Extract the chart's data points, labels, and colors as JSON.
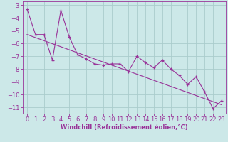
{
  "x_data": [
    0,
    1,
    2,
    3,
    4,
    5,
    6,
    7,
    8,
    9,
    10,
    11,
    12,
    13,
    14,
    15,
    16,
    17,
    18,
    19,
    20,
    21,
    22,
    23
  ],
  "y_data": [
    -3.3,
    -5.3,
    -5.3,
    -7.3,
    -3.4,
    -5.5,
    -6.9,
    -7.2,
    -7.6,
    -7.7,
    -7.6,
    -7.6,
    -8.2,
    -7.0,
    -7.5,
    -7.9,
    -7.3,
    -8.0,
    -8.5,
    -9.2,
    -8.6,
    -9.8,
    -11.1,
    -10.5
  ],
  "trend_x": [
    0,
    23
  ],
  "trend_y": [
    -5.3,
    -10.8
  ],
  "line_color": "#993399",
  "marker": "+",
  "xlabel": "Windchill (Refroidissement éolien,°C)",
  "ylim": [
    -11.5,
    -2.7
  ],
  "xlim": [
    -0.5,
    23.5
  ],
  "yticks": [
    -3,
    -4,
    -5,
    -6,
    -7,
    -8,
    -9,
    -10,
    -11
  ],
  "xticks": [
    0,
    1,
    2,
    3,
    4,
    5,
    6,
    7,
    8,
    9,
    10,
    11,
    12,
    13,
    14,
    15,
    16,
    17,
    18,
    19,
    20,
    21,
    22,
    23
  ],
  "bg_color": "#cce8e8",
  "grid_color": "#aacccc",
  "text_color": "#993399",
  "tick_fontsize": 6,
  "xlabel_fontsize": 6
}
